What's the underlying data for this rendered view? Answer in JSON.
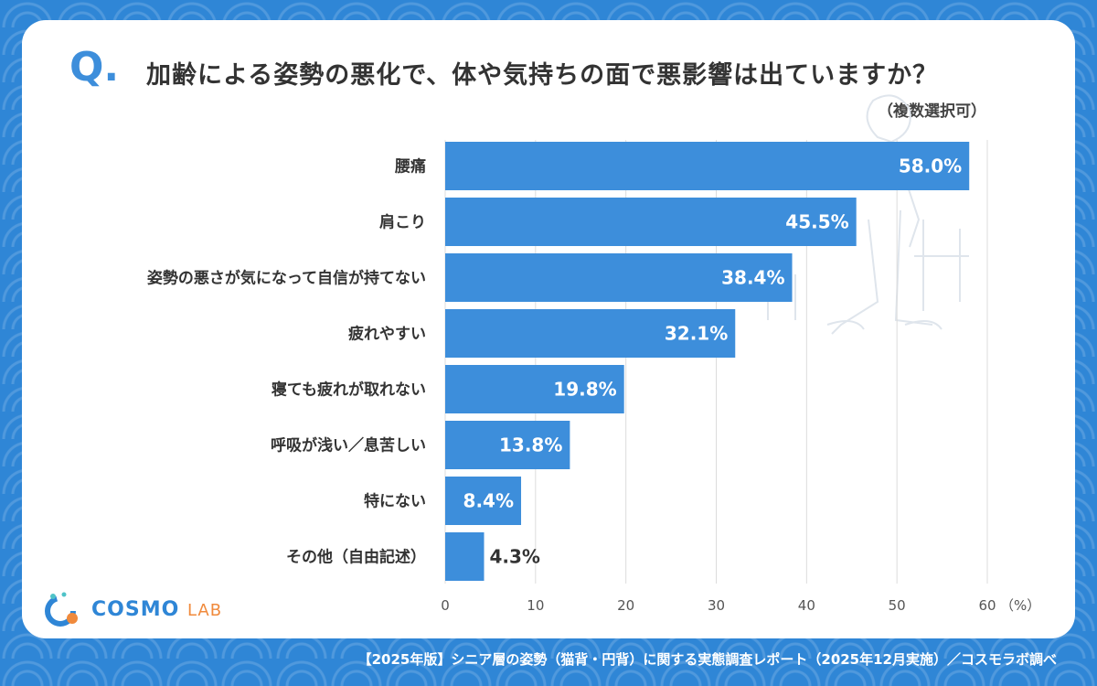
{
  "header": {
    "q_mark": "Q.",
    "title": "加齢による姿勢の悪化で、体や気持ちの面で悪影響は出ていますか？",
    "subtitle": "（複数選択可）"
  },
  "logo": {
    "brand": "COSMO",
    "brand_sub": "LAB"
  },
  "footer": {
    "source": "【2025年版】シニア層の姿勢（猫背・円背）に関する実態調査レポート（2025年12月実施）／コスモラボ調べ"
  },
  "colors": {
    "bar": "#3d8edb",
    "label_inside": "#ffffff",
    "label_outside": "#333333",
    "grid": "#dcdcdc"
  },
  "chart_data": {
    "type": "bar",
    "orientation": "horizontal",
    "categories": [
      "腰痛",
      "肩こり",
      "姿勢の悪さが気になって自信が持てない",
      "疲れやすい",
      "寝ても疲れが取れない",
      "呼吸が浅い／息苦しい",
      "特にない",
      "その他（自由記述）"
    ],
    "values": [
      58.0,
      45.5,
      38.4,
      32.1,
      19.8,
      13.8,
      8.4,
      4.3
    ],
    "value_labels": [
      "58.0%",
      "45.5%",
      "38.4%",
      "32.1%",
      "19.8%",
      "13.8%",
      "8.4%",
      "4.3%"
    ],
    "xlim": [
      0,
      60
    ],
    "xticks": [
      0,
      10,
      20,
      30,
      40,
      50,
      60
    ],
    "xtick_labels": [
      "0",
      "10",
      "20",
      "30",
      "40",
      "50",
      "60"
    ],
    "x_unit": "（%）",
    "grid": true
  }
}
